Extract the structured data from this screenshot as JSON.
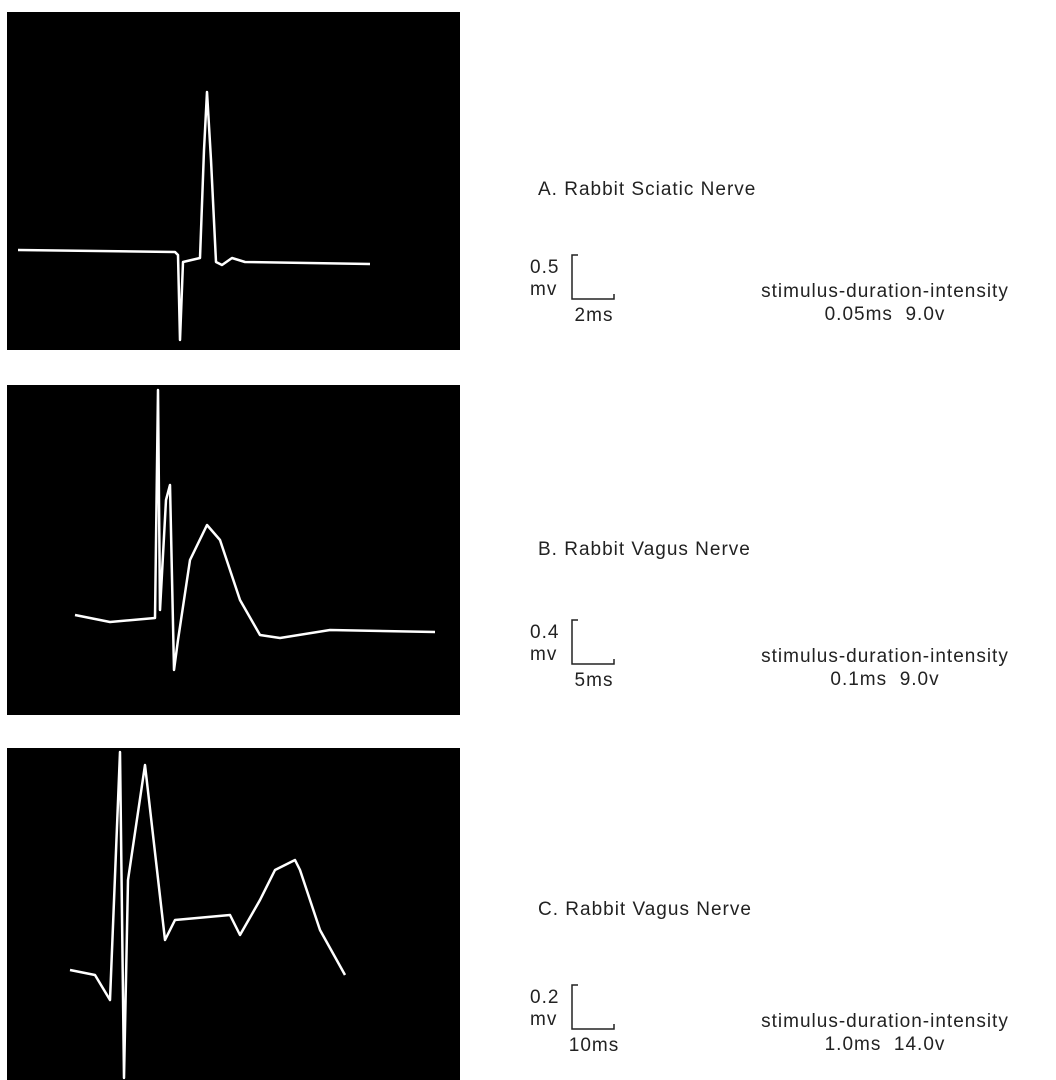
{
  "panels": [
    {
      "title": "A. Rabbit Sciatic Nerve",
      "scale_voltage": "0.5",
      "scale_voltage_unit": "mv",
      "scale_time": "2ms",
      "stimulus_heading": "stimulus-duration-intensity",
      "stimulus_values": "0.05ms  9.0v"
    },
    {
      "title": "B. Rabbit Vagus Nerve",
      "scale_voltage": "0.4",
      "scale_voltage_unit": "mv",
      "scale_time": "5ms",
      "stimulus_heading": "stimulus-duration-intensity",
      "stimulus_values": "0.1ms  9.0v"
    },
    {
      "title": "C. Rabbit Vagus Nerve",
      "scale_voltage": "0.2",
      "scale_voltage_unit": "mv",
      "scale_time": "10ms",
      "stimulus_heading": "stimulus-duration-intensity",
      "stimulus_values": "1.0ms  14.0v"
    }
  ]
}
